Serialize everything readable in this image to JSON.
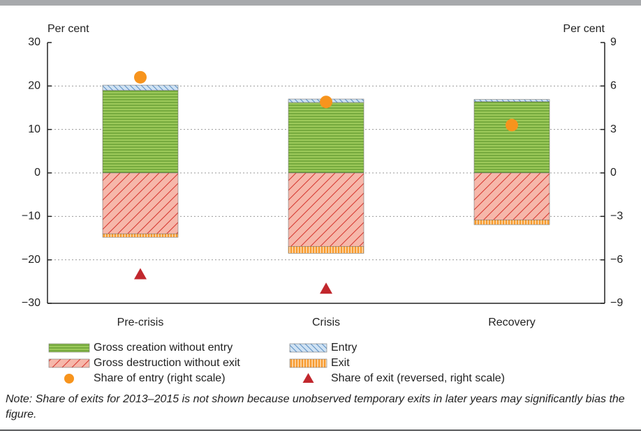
{
  "chart_data": {
    "type": "bar",
    "y_label": "Per cent",
    "y2_label": "Per cent",
    "categories": [
      "Pre-crisis",
      "Crisis",
      "Recovery"
    ],
    "ylim": [
      -30,
      30
    ],
    "yticks": [
      {
        "value": -30,
        "label": "−30"
      },
      {
        "value": -20,
        "label": "−20"
      },
      {
        "value": -10,
        "label": "−10"
      },
      0,
      10,
      20,
      30
    ],
    "y2lim": [
      -9,
      9
    ],
    "y2ticks": [
      {
        "value": -9,
        "label": "−9"
      },
      {
        "value": -6,
        "label": "−6"
      },
      {
        "value": -3,
        "label": "−3"
      },
      0,
      3,
      6,
      9
    ],
    "grid": true,
    "stacked": true,
    "series": [
      {
        "name": "Gross creation without entry",
        "type": "bar",
        "color": "#9cc95a",
        "values": [
          19.0,
          16.2,
          16.4
        ]
      },
      {
        "name": "Entry",
        "type": "bar",
        "color": "#cfe2f3",
        "values": [
          1.2,
          0.8,
          0.5
        ]
      },
      {
        "name": "Gross destruction without exit",
        "type": "bar",
        "color": "#f6b7aa",
        "values": [
          -14.0,
          -16.9,
          -10.8
        ]
      },
      {
        "name": "Exit",
        "type": "bar",
        "color": "#f79a2e",
        "values": [
          -0.8,
          -1.6,
          -1.1
        ]
      },
      {
        "name": "Share of entry (right scale)",
        "type": "circle",
        "axis": "y2",
        "color": "#f7941d",
        "values": [
          6.6,
          4.9,
          3.3
        ]
      },
      {
        "name": "Share of exit (reversed, right scale)",
        "type": "triangle",
        "axis": "y2",
        "color": "#c1272d",
        "values": [
          -7.0,
          -8.0,
          null
        ]
      }
    ],
    "note": "Note: Share of exits for 2013–2015 is not shown because unobserved temporary exits in later years may significantly bias the figure."
  }
}
